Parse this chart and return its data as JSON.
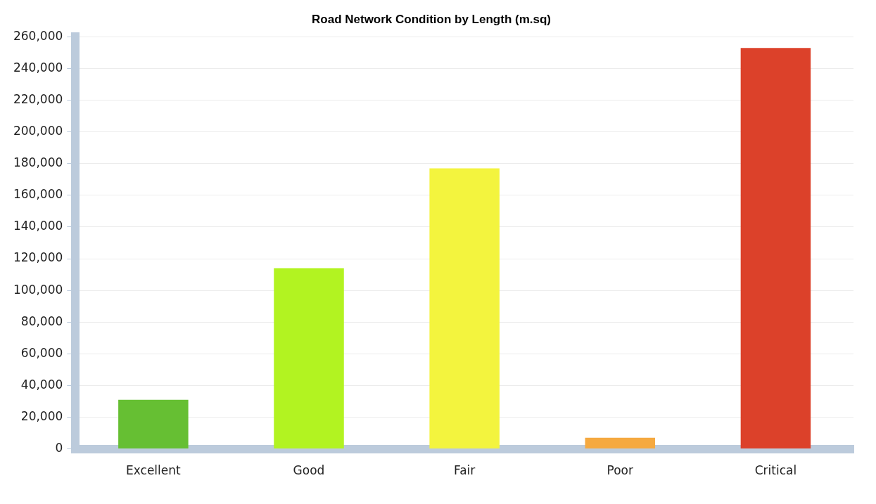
{
  "chart_data": {
    "type": "bar",
    "title": "Road Network Condition by Length (m.sq)",
    "categories": [
      "Excellent",
      "Good",
      "Fair",
      "Poor",
      "Critical"
    ],
    "values": [
      31000,
      114000,
      177000,
      7000,
      253000
    ],
    "colors": [
      "#66bf33",
      "#b2f321",
      "#f3f43e",
      "#f5a940",
      "#dc412a"
    ],
    "ylim": [
      0,
      260000
    ],
    "yticks": [
      0,
      {
        "value": 20000,
        "label": "20,000"
      },
      {
        "value": 40000,
        "label": "40,000"
      },
      {
        "value": 60000,
        "label": "60,000"
      },
      {
        "value": 80000,
        "label": "80,000"
      },
      {
        "value": 100000,
        "label": "100,000"
      },
      {
        "value": 120000,
        "label": "120,000"
      },
      {
        "value": 140000,
        "label": "140,000"
      },
      {
        "value": 160000,
        "label": "160,000"
      },
      {
        "value": 180000,
        "label": "180,000"
      },
      {
        "value": 200000,
        "label": "200,000"
      },
      {
        "value": 220000,
        "label": "220,000"
      },
      {
        "value": 240000,
        "label": "240,000"
      },
      {
        "value": 260000,
        "label": "260,000"
      }
    ],
    "grid": "y",
    "legend": false
  }
}
